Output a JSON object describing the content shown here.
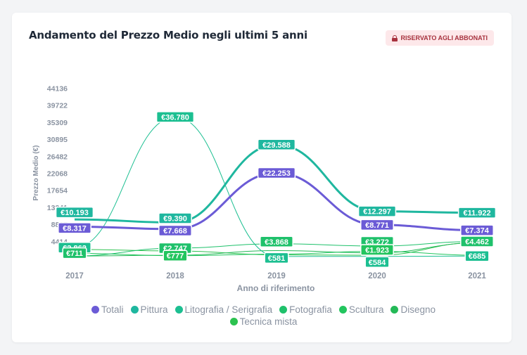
{
  "card": {
    "title": "Andamento del Prezzo Medio negli ultimi 5 anni",
    "badge": "RISERVATO AGLI ABBONATI",
    "badge_icon": "lock-icon"
  },
  "chart_data": {
    "type": "line",
    "x": [
      "2017",
      "2018",
      "2019",
      "2020",
      "2021"
    ],
    "xlabel": "Anno di riferimento",
    "ylabel": "Prezzo Medio (€)",
    "ylim": [
      0,
      44136
    ],
    "yticks": [
      4414,
      8827,
      13241,
      17654,
      22068,
      26482,
      30895,
      35309,
      39722,
      44136
    ],
    "grid": false,
    "legend_position": "bottom",
    "series": [
      {
        "name": "Totali",
        "color": "#6b5bd6",
        "values": [
          8317,
          7668,
          22253,
          8771,
          7374
        ],
        "labels": [
          "€8.317",
          "€7.668",
          "€22.253",
          "€8.771",
          "€7.374"
        ]
      },
      {
        "name": "Pittura",
        "color": "#1fb79f",
        "values": [
          10193,
          9390,
          29588,
          12297,
          11922
        ],
        "labels": [
          "€10.193",
          "€9.390",
          "€29.588",
          "€12.297",
          "€11.922"
        ]
      },
      {
        "name": "Litografia / Serigrafia",
        "color": "#1cbf91",
        "values": [
          2862,
          36780,
          581,
          584,
          685
        ],
        "labels": [
          "€2.862",
          "€36.780",
          "€581",
          "€584",
          "€685"
        ]
      },
      {
        "name": "Fotografia",
        "color": "#1fc16b",
        "values": [
          711,
          2747,
          3868,
          3272,
          4462
        ],
        "labels": [
          "€711",
          "€2.747",
          "€3.868",
          "€3.272",
          "€4.462"
        ]
      },
      {
        "name": "Scultura",
        "color": "#22c55e",
        "values": [
          1400,
          777,
          1200,
          1923,
          900
        ],
        "labels": [
          "",
          "€777",
          "",
          "€1.923",
          ""
        ]
      },
      {
        "name": "Disegno",
        "color": "#24b957",
        "values": [
          700,
          900,
          2100,
          1500,
          4100
        ],
        "labels": [
          "",
          "",
          "",
          "",
          ""
        ]
      },
      {
        "name": "Tecnica mista",
        "color": "#2cc24f",
        "values": [
          2400,
          2000,
          1000,
          900,
          4200
        ],
        "labels": [
          "",
          "",
          "",
          "",
          ""
        ]
      }
    ]
  }
}
